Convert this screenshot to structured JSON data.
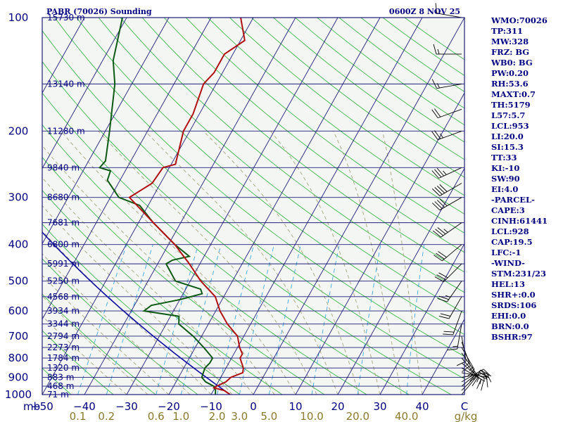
{
  "chart_data": {
    "type": "skew-t log-p sounding",
    "title": "PABR (70026) Sounding",
    "valid_time": "0600Z  8 NOV 25",
    "pressure_axis_label": "mb",
    "pressure_ticks": [
      100,
      200,
      300,
      400,
      500,
      600,
      700,
      800,
      900,
      1000
    ],
    "temperature_ticks": [
      -50,
      -40,
      -30,
      -20,
      -10,
      0,
      10,
      20,
      30,
      40
    ],
    "temperature_tick_labels": [
      "−50",
      "−40",
      "−30",
      "−20",
      "−10",
      "0",
      "10",
      "20",
      "30",
      "40"
    ],
    "temperature_axis_end_label": "C",
    "mixing_ratio_ticks": [
      "0.1",
      "0.2",
      "0.6",
      "1.0",
      "2.0",
      "3.0",
      "5.0",
      "10.0",
      "20.0",
      "40.0"
    ],
    "mixing_ratio_values": [
      0.1,
      0.2,
      0.6,
      1.0,
      2.0,
      3.0,
      5.0,
      10.0,
      20.0,
      40.0
    ],
    "mixing_ratio_unit": "g/kg",
    "height_levels": [
      {
        "p": 100,
        "label": "15730 m"
      },
      {
        "p": 150,
        "label": "13140 m"
      },
      {
        "p": 200,
        "label": "11280 m"
      },
      {
        "p": 250,
        "label": "9840 m"
      },
      {
        "p": 300,
        "label": "8680 m"
      },
      {
        "p": 350,
        "label": "7681 m"
      },
      {
        "p": 400,
        "label": "6800 m"
      },
      {
        "p": 450,
        "label": "5991 m"
      },
      {
        "p": 500,
        "label": "5250 m"
      },
      {
        "p": 550,
        "label": "4568 m"
      },
      {
        "p": 600,
        "label": "3934 m"
      },
      {
        "p": 650,
        "label": "3344 m"
      },
      {
        "p": 700,
        "label": "2794 m"
      },
      {
        "p": 750,
        "label": "2273 m"
      },
      {
        "p": 800,
        "label": "1784 m"
      },
      {
        "p": 850,
        "label": "1320 m"
      },
      {
        "p": 900,
        "label": "883 m"
      },
      {
        "p": 950,
        "label": "468 m"
      },
      {
        "p": 1000,
        "label": "71 m"
      }
    ],
    "temperature_profile": [
      {
        "p": 1000,
        "t": -5.5
      },
      {
        "p": 975,
        "t": -7.5
      },
      {
        "p": 960,
        "t": -10.2
      },
      {
        "p": 950,
        "t": -9.8
      },
      {
        "p": 925,
        "t": -8.2
      },
      {
        "p": 900,
        "t": -7.6
      },
      {
        "p": 875,
        "t": -5.4
      },
      {
        "p": 850,
        "t": -5.9
      },
      {
        "p": 800,
        "t": -8.0
      },
      {
        "p": 780,
        "t": -8.0
      },
      {
        "p": 750,
        "t": -9.5
      },
      {
        "p": 700,
        "t": -11.5
      },
      {
        "p": 650,
        "t": -15.5
      },
      {
        "p": 600,
        "t": -19.0
      },
      {
        "p": 550,
        "t": -22.0
      },
      {
        "p": 500,
        "t": -27.5
      },
      {
        "p": 450,
        "t": -32.5
      },
      {
        "p": 400,
        "t": -38.5
      },
      {
        "p": 350,
        "t": -46.5
      },
      {
        "p": 300,
        "t": -55.5
      },
      {
        "p": 275,
        "t": -52.0
      },
      {
        "p": 250,
        "t": -51.5
      },
      {
        "p": 245,
        "t": -49.0
      },
      {
        "p": 200,
        "t": -51.5
      },
      {
        "p": 180,
        "t": -51.5
      },
      {
        "p": 150,
        "t": -53.0
      },
      {
        "p": 140,
        "t": -52.0
      },
      {
        "p": 125,
        "t": -52.0
      },
      {
        "p": 115,
        "t": -49.0
      },
      {
        "p": 100,
        "t": -53.0
      }
    ],
    "dewpoint_profile": [
      {
        "p": 1000,
        "t": -9.0
      },
      {
        "p": 975,
        "t": -9.5
      },
      {
        "p": 950,
        "t": -10.5
      },
      {
        "p": 925,
        "t": -13.0
      },
      {
        "p": 900,
        "t": -14.5
      },
      {
        "p": 850,
        "t": -15.0
      },
      {
        "p": 825,
        "t": -14.5
      },
      {
        "p": 800,
        "t": -14.5
      },
      {
        "p": 750,
        "t": -18.0
      },
      {
        "p": 700,
        "t": -22.0
      },
      {
        "p": 650,
        "t": -27.0
      },
      {
        "p": 620,
        "t": -28.0
      },
      {
        "p": 600,
        "t": -37.0
      },
      {
        "p": 580,
        "t": -36.0
      },
      {
        "p": 560,
        "t": -30.0
      },
      {
        "p": 540,
        "t": -25.5
      },
      {
        "p": 525,
        "t": -26.5
      },
      {
        "p": 500,
        "t": -33.5
      },
      {
        "p": 450,
        "t": -38.0
      },
      {
        "p": 440,
        "t": -37.0
      },
      {
        "p": 430,
        "t": -33.5
      },
      {
        "p": 400,
        "t": -38.5
      },
      {
        "p": 350,
        "t": -46.5
      },
      {
        "p": 315,
        "t": -52.0
      },
      {
        "p": 300,
        "t": -58.0
      },
      {
        "p": 270,
        "t": -63.0
      },
      {
        "p": 255,
        "t": -63.5
      },
      {
        "p": 250,
        "t": -66.5
      },
      {
        "p": 240,
        "t": -66.0
      },
      {
        "p": 200,
        "t": -69.0
      },
      {
        "p": 150,
        "t": -74.0
      },
      {
        "p": 130,
        "t": -77.5
      },
      {
        "p": 100,
        "t": -81.0
      }
    ],
    "wind_barbs": [
      {
        "p": 1000,
        "dir": 40,
        "spd": 10
      },
      {
        "p": 975,
        "dir": 45,
        "spd": 15
      },
      {
        "p": 950,
        "dir": 50,
        "spd": 20
      },
      {
        "p": 925,
        "dir": 60,
        "spd": 20
      },
      {
        "p": 900,
        "dir": 80,
        "spd": 15
      },
      {
        "p": 875,
        "dir": 100,
        "spd": 15
      },
      {
        "p": 850,
        "dir": 120,
        "spd": 15
      },
      {
        "p": 825,
        "dir": 130,
        "spd": 15
      },
      {
        "p": 800,
        "dir": 140,
        "spd": 15
      },
      {
        "p": 775,
        "dir": 145,
        "spd": 15
      },
      {
        "p": 750,
        "dir": 150,
        "spd": 15
      },
      {
        "p": 725,
        "dir": 160,
        "spd": 15
      },
      {
        "p": 700,
        "dir": 170,
        "spd": 10
      },
      {
        "p": 650,
        "dir": 190,
        "spd": 15
      },
      {
        "p": 600,
        "dir": 200,
        "spd": 20
      },
      {
        "p": 550,
        "dir": 210,
        "spd": 20
      },
      {
        "p": 500,
        "dir": 215,
        "spd": 25
      },
      {
        "p": 450,
        "dir": 225,
        "spd": 30
      },
      {
        "p": 400,
        "dir": 230,
        "spd": 30
      },
      {
        "p": 350,
        "dir": 235,
        "spd": 35
      },
      {
        "p": 300,
        "dir": 240,
        "spd": 40
      },
      {
        "p": 275,
        "dir": 240,
        "spd": 40
      },
      {
        "p": 250,
        "dir": 245,
        "spd": 35
      },
      {
        "p": 200,
        "dir": 250,
        "spd": 25
      },
      {
        "p": 175,
        "dir": 250,
        "spd": 20
      },
      {
        "p": 150,
        "dir": 260,
        "spd": 15
      },
      {
        "p": 125,
        "dir": 270,
        "spd": 15
      },
      {
        "p": 100,
        "dir": 280,
        "spd": 15
      }
    ],
    "temperature_range": [
      -50,
      50
    ],
    "pressure_range": [
      1000,
      100
    ],
    "skew_degrees_per_decade": 50
  },
  "indices": [
    "WMO:70026",
    "TP:311",
    "MW:328",
    "FRZ: BG",
    "WB0: BG",
    "PW:0.20",
    "RH:53.6",
    "MAXT:0.7",
    "TH:5179",
    "L57:5.7",
    "LCL:953",
    "LI:20.0",
    "SI:15.3",
    "TT:33",
    "KI:-10",
    "SW:90",
    "EI:4.0",
    "-PARCEL-",
    "CAPE:3",
    "CINH:61441",
    "LCL:928",
    "CAP:19.5",
    "LFC:-1",
    "-WIND-",
    "STM:231/23",
    "HEL:13",
    "SHR+:0.0",
    "SRDS:106",
    "EHI:0.0",
    "BRN:0.0",
    "BSHR:97"
  ],
  "colors": {
    "isobar": "#1f1f7a",
    "isotherm": "#1f1f7a",
    "dry_adiabat": "#3cb84a",
    "moist_adiabat": "#a5a57a",
    "mixing_ratio": "#40a8dc",
    "temperature": "#b21010",
    "dewpoint": "#0d5a14",
    "parcel": "#0a0aa0",
    "barb": "#000000",
    "plot_bg": "#f4f6f4"
  }
}
